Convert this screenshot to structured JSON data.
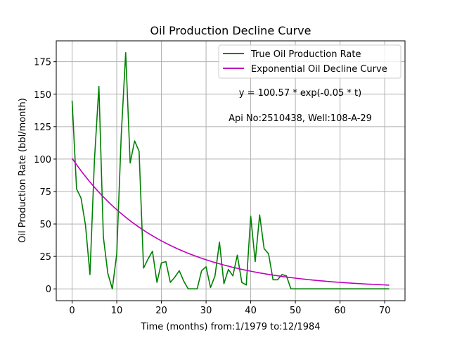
{
  "chart_data": {
    "type": "line",
    "title": "Oil Production Decline Curve",
    "xlabel": "Time (months) from:1/1979 to:12/1984",
    "ylabel": "Oil Production Rate (bbl/month)",
    "xlim": [
      -3.55,
      74.55
    ],
    "ylim": [
      -9.1,
      191.1
    ],
    "xticks": [
      0,
      10,
      20,
      30,
      40,
      50,
      60,
      70
    ],
    "yticks": [
      0,
      25,
      50,
      75,
      100,
      125,
      150,
      175
    ],
    "grid": true,
    "legend_position": "top-right",
    "annotations": [
      "y = 100.57 * exp(-0.05 * t)",
      "Api No:2510438, Well:108-A-29"
    ],
    "series": [
      {
        "name": "True Oil Production Rate",
        "color": "#008000",
        "x": [
          0,
          1,
          2,
          3,
          4,
          5,
          6,
          7,
          8,
          9,
          10,
          11,
          12,
          13,
          14,
          15,
          16,
          17,
          18,
          19,
          20,
          21,
          22,
          23,
          24,
          25,
          26,
          27,
          28,
          29,
          30,
          31,
          32,
          33,
          34,
          35,
          36,
          37,
          38,
          39,
          40,
          41,
          42,
          43,
          44,
          45,
          46,
          47,
          48,
          49,
          50,
          51,
          52,
          53,
          54,
          55,
          56,
          57,
          58,
          59,
          60,
          61,
          62,
          63,
          64,
          65,
          66,
          67,
          68,
          69,
          70,
          71
        ],
        "values": [
          145,
          77,
          70,
          49,
          11,
          99,
          156,
          40,
          12,
          0,
          27,
          118,
          182,
          97,
          114,
          106,
          16,
          23,
          29,
          5,
          20,
          21,
          5,
          9,
          14,
          6,
          0,
          0,
          0,
          14,
          17,
          1,
          10,
          36,
          4,
          15,
          10,
          26,
          5,
          3,
          56,
          21,
          57,
          31,
          27,
          7,
          7,
          11,
          10,
          0,
          0,
          0,
          0,
          0,
          0,
          0,
          0,
          0,
          0,
          0,
          0,
          0,
          0,
          0,
          0,
          0,
          0,
          0,
          0,
          0,
          0,
          0
        ]
      },
      {
        "name": "Exponential Oil Decline Curve",
        "color": "#bf00bf",
        "function": "100.57 * exp(-0.05 * t)",
        "x_range": [
          0,
          71
        ]
      }
    ]
  }
}
